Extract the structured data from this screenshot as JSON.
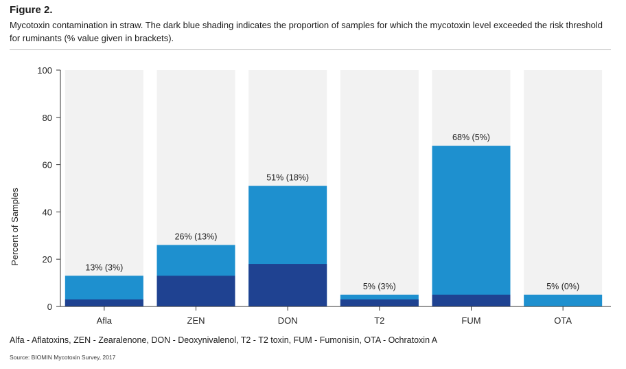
{
  "figure_title": "Figure 2.",
  "caption": "Mycotoxin contamination in straw. The dark blue shading indicates the proportion of samples for which the mycotoxin level exceeded the risk threshold for ruminants (% value given in brackets).",
  "footnote": "Alfa - Aflatoxins, ZEN - Zearalenone, DON - Deoxynivalenol, T2 - T2 toxin, FUM - Fumonisin, OTA - Ochratoxin A",
  "source": "Source: BIOMIN Mycotoxin Survey, 2017",
  "colors": {
    "positive": "#1e90cf",
    "above_threshold": "#1f4291",
    "column_background": "#f2f2f2"
  },
  "chart_data": {
    "type": "bar",
    "categories": [
      "Afla",
      "ZEN",
      "DON",
      "T2",
      "FUM",
      "OTA"
    ],
    "series": [
      {
        "values": [
          13,
          26,
          51,
          5,
          68,
          5
        ]
      },
      {
        "values": [
          3,
          13,
          18,
          3,
          5,
          0
        ]
      }
    ],
    "data_labels": [
      "13% (3%)",
      "26% (13%)",
      "51% (18%)",
      "5% (3%)",
      "68% (5%)",
      "5% (0%)"
    ],
    "ylabel": "Percent of Samples",
    "xlabel": "",
    "ylim": [
      0,
      100
    ],
    "yticks": [
      0,
      20,
      40,
      60,
      80,
      100
    ],
    "grid": false
  }
}
